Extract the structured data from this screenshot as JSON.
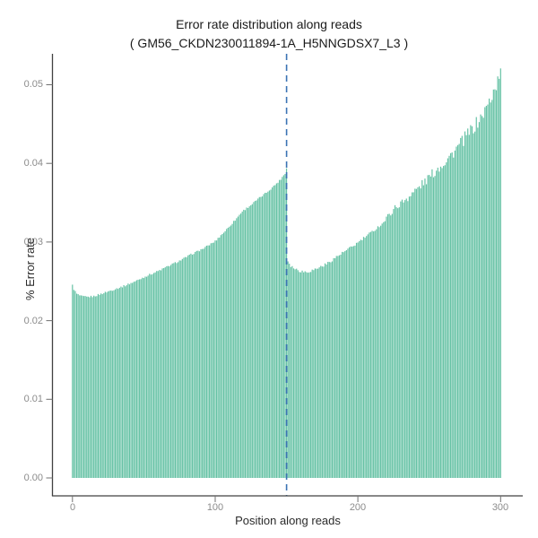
{
  "chart": {
    "title": "Error rate distribution along reads",
    "subtitle": "( GM56_CKDN230011894-1A_H5NNGDSX7_L3 )",
    "xlabel": "Position along reads",
    "ylabel": "% Error rate"
  },
  "chart_data": {
    "type": "bar",
    "title": "Error rate distribution along reads",
    "subtitle": "( GM56_CKDN230011894-1A_H5NNGDSX7_L3 )",
    "xlabel": "Position along reads",
    "ylabel": "% Error rate",
    "xlim": [
      0,
      300
    ],
    "ylim": [
      0,
      0.05
    ],
    "xticks": [
      0,
      100,
      200,
      300
    ],
    "xticklabels": [
      "0",
      "100",
      "200",
      "300"
    ],
    "yticks": [
      0,
      0.01,
      0.02,
      0.03,
      0.04,
      0.05
    ],
    "yticklabels": [
      "0.00",
      "0.01",
      "0.02",
      "0.03",
      "0.04",
      "0.05"
    ],
    "grid": false,
    "legend": false,
    "dashed_vline_x": 150,
    "n_bars": 301,
    "colors": {
      "bar": "#66c2a5",
      "dashed_line": "#3b73b4",
      "axis_line": "#404040",
      "tick_mark": "#707070",
      "tick_label": "#8c8c8c",
      "title_text": "#1a1a1a"
    },
    "envelope_points": [
      [
        0,
        0.0245
      ],
      [
        1,
        0.024
      ],
      [
        3,
        0.0234
      ],
      [
        6,
        0.0231
      ],
      [
        10,
        0.023
      ],
      [
        15,
        0.0231
      ],
      [
        20,
        0.0234
      ],
      [
        28,
        0.0239
      ],
      [
        36,
        0.0244
      ],
      [
        44,
        0.025
      ],
      [
        52,
        0.0257
      ],
      [
        60,
        0.0263
      ],
      [
        68,
        0.027
      ],
      [
        76,
        0.0277
      ],
      [
        84,
        0.0285
      ],
      [
        92,
        0.0292
      ],
      [
        100,
        0.0301
      ],
      [
        108,
        0.0316
      ],
      [
        114,
        0.0328
      ],
      [
        119,
        0.0339
      ],
      [
        125,
        0.0347
      ],
      [
        131,
        0.0356
      ],
      [
        136,
        0.0363
      ],
      [
        141,
        0.0371
      ],
      [
        145,
        0.0378
      ],
      [
        148,
        0.0385
      ],
      [
        149,
        0.0387
      ],
      [
        150,
        0.0394
      ],
      [
        151,
        0.0276
      ],
      [
        153,
        0.027
      ],
      [
        156,
        0.0266
      ],
      [
        160,
        0.0263
      ],
      [
        164,
        0.0262
      ],
      [
        168,
        0.0264
      ],
      [
        172,
        0.0267
      ],
      [
        178,
        0.0272
      ],
      [
        184,
        0.028
      ],
      [
        190,
        0.0287
      ],
      [
        196,
        0.0294
      ],
      [
        202,
        0.0302
      ],
      [
        210,
        0.0313
      ],
      [
        218,
        0.0325
      ],
      [
        225,
        0.0342
      ],
      [
        232,
        0.0352
      ],
      [
        240,
        0.0365
      ],
      [
        247,
        0.0377
      ],
      [
        253,
        0.0388
      ],
      [
        259,
        0.0399
      ],
      [
        265,
        0.041
      ],
      [
        271,
        0.0423
      ],
      [
        277,
        0.0437
      ],
      [
        283,
        0.045
      ],
      [
        288,
        0.0463
      ],
      [
        292,
        0.0478
      ],
      [
        295,
        0.0491
      ],
      [
        298,
        0.0504
      ],
      [
        300,
        0.0517
      ]
    ]
  }
}
